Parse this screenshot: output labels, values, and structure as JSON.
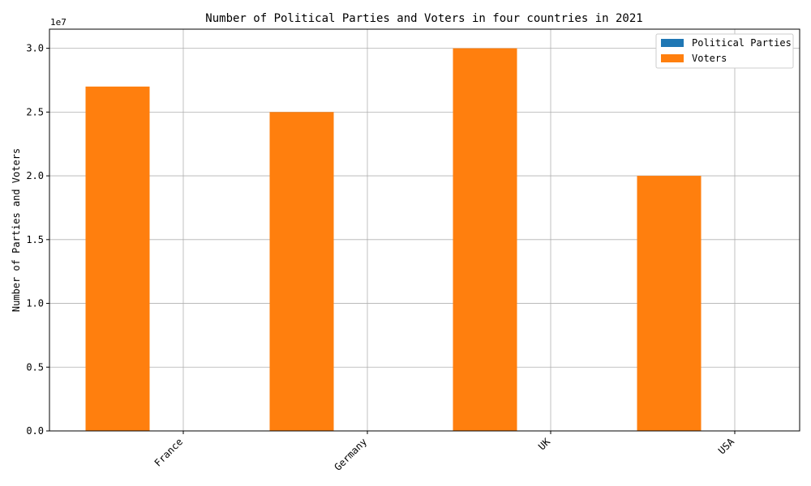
{
  "chart_data": {
    "type": "bar",
    "title": "Number of Political Parties and Voters in four countries in 2021",
    "xlabel": "",
    "ylabel": "Number of Parties and Voters",
    "y_offset_label": "1e7",
    "categories": [
      "France",
      "Germany",
      "UK",
      "USA"
    ],
    "series": [
      {
        "name": "Political Parties",
        "color": "#1f77b4",
        "values": [
          12,
          16,
          9,
          2
        ]
      },
      {
        "name": "Voters",
        "color": "#ff7f0e",
        "values": [
          27000000,
          25000000,
          30000000,
          20000000
        ]
      }
    ],
    "ylim": [
      0,
      31500000
    ],
    "yticks": [
      0,
      5000000,
      10000000,
      15000000,
      20000000,
      25000000,
      30000000
    ],
    "ytick_labels": [
      "0.0",
      "0.5",
      "1.0",
      "1.5",
      "2.0",
      "2.5",
      "3.0"
    ],
    "grid": true,
    "legend_position": "top-right",
    "xtick_rotation": 45
  }
}
